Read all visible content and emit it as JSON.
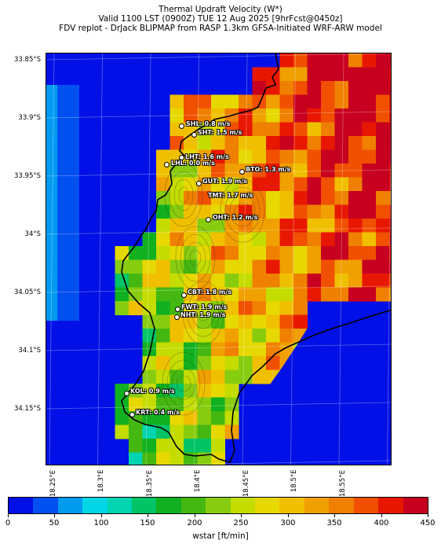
{
  "title_lines": [
    "Thermal Updraft Velocity (W*)",
    "Valid 1100 LST (0900Z) TUE 12 Aug 2025 [9hrFcst@0450z]",
    "FDV replot - DrJack BLIPMAP from RASP 1.3km GFSA-Initiated WRF-ARW model"
  ],
  "y_axis_labels": [
    "33.85°S",
    "33.9°S",
    "33.95°S",
    "34°S",
    "34.05°S",
    "34.1°S",
    "34.15°S"
  ],
  "x_axis_labels": [
    "18.25°E",
    "18.3°E",
    "18.35°E",
    "18.4°E",
    "18.45°E",
    "18.5°E",
    "18.55°E"
  ],
  "stations": [
    {
      "label": "SHL: 0.8 m/s"
    },
    {
      "label": "SHT: 1.5 m/s"
    },
    {
      "label": "LHT: 1.6 m/s"
    },
    {
      "label": "LHL: 0.0 m/s"
    },
    {
      "label": "BTO: 1.3 m/s"
    },
    {
      "label": "GUT: 1.9 m/s"
    },
    {
      "label": "TMT: 1.7 m/s"
    },
    {
      "label": "OHT: 1.2 m/s"
    },
    {
      "label": "CBT: 1.8 m/s"
    },
    {
      "label": "FWT: 1.9 m/s"
    },
    {
      "label": "NHT: 1.9 m/s"
    },
    {
      "label": "KOL: 0.9 m/s"
    },
    {
      "label": "KRT: 0.4 m/s"
    }
  ],
  "colorbar": {
    "label": "wstar [ft/min]",
    "tick_labels": [
      "0",
      "50",
      "100",
      "150",
      "200",
      "250",
      "300",
      "350",
      "400",
      "450"
    ],
    "colors": [
      "#0010e6",
      "#0050f0",
      "#009af0",
      "#00d6e6",
      "#00d4b0",
      "#00c466",
      "#10b020",
      "#44b810",
      "#88cc10",
      "#c4dc00",
      "#e6d800",
      "#f0c000",
      "#f0a000",
      "#f08000",
      "#f05000",
      "#e81800",
      "#c80020"
    ]
  },
  "field_colors": {
    "sea": "#0010e6",
    "offshore": "#0050f0",
    "shelf": "#009af0"
  }
}
